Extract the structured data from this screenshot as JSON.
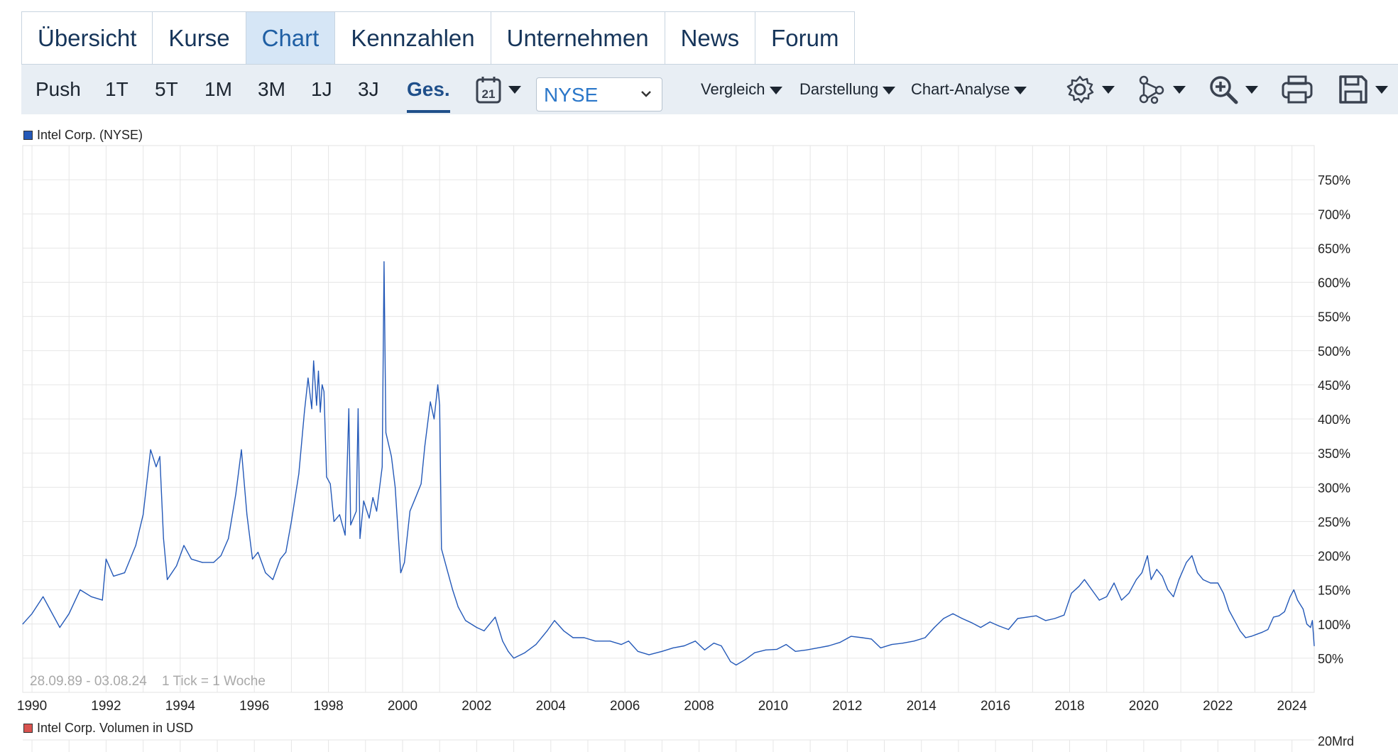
{
  "tabs": [
    {
      "label": "Übersicht",
      "active": false
    },
    {
      "label": "Kurse",
      "active": false
    },
    {
      "label": "Chart",
      "active": true
    },
    {
      "label": "Kennzahlen",
      "active": false
    },
    {
      "label": "Unternehmen",
      "active": false
    },
    {
      "label": "News",
      "active": false
    },
    {
      "label": "Forum",
      "active": false
    }
  ],
  "toolbar": {
    "ranges": [
      "Push",
      "1T",
      "5T",
      "1M",
      "3M",
      "1J",
      "3J",
      "Ges."
    ],
    "active_range": "Ges.",
    "calendar_day": "21",
    "exchange_select": "NYSE",
    "menus": {
      "compare": "Vergleich",
      "display": "Darstellung",
      "analysis": "Chart-Analyse"
    },
    "icons": [
      "gear-icon",
      "nodes-icon",
      "zoom-in-icon",
      "print-icon",
      "save-icon"
    ]
  },
  "colors": {
    "accent": "#1f5fa4",
    "line": "#2459b8",
    "toolbar_bg": "#e8eef4",
    "active_tab_bg": "#d6e6f6",
    "volume_legend": "#d9534f"
  },
  "chart_data": {
    "type": "line",
    "legend": "Intel Corp. (NYSE)",
    "x_tick_labels": [
      "1990",
      "1992",
      "1994",
      "1996",
      "1998",
      "2000",
      "2002",
      "2004",
      "2006",
      "2008",
      "2010",
      "2012",
      "2014",
      "2016",
      "2018",
      "2020",
      "2022",
      "2024"
    ],
    "y_tick_labels": [
      "50%",
      "100%",
      "150%",
      "200%",
      "250%",
      "300%",
      "350%",
      "400%",
      "450%",
      "500%",
      "550%",
      "600%",
      "650%",
      "700%",
      "750%"
    ],
    "xlim": [
      1989.75,
      2024.6
    ],
    "ylim": [
      0,
      800
    ],
    "date_range": "28.09.89 - 03.08.24",
    "tick_info": "1 Tick = 1 Woche",
    "grid": true,
    "series": [
      {
        "name": "Intel Corp. (NYSE)",
        "points": [
          [
            1989.75,
            100
          ],
          [
            1990.0,
            115
          ],
          [
            1990.3,
            140
          ],
          [
            1990.5,
            120
          ],
          [
            1990.75,
            95
          ],
          [
            1991.0,
            115
          ],
          [
            1991.3,
            150
          ],
          [
            1991.6,
            140
          ],
          [
            1991.9,
            135
          ],
          [
            1992.0,
            195
          ],
          [
            1992.2,
            170
          ],
          [
            1992.5,
            175
          ],
          [
            1992.8,
            215
          ],
          [
            1993.0,
            260
          ],
          [
            1993.2,
            355
          ],
          [
            1993.35,
            330
          ],
          [
            1993.45,
            345
          ],
          [
            1993.55,
            225
          ],
          [
            1993.65,
            165
          ],
          [
            1993.9,
            185
          ],
          [
            1994.1,
            215
          ],
          [
            1994.3,
            195
          ],
          [
            1994.6,
            190
          ],
          [
            1994.9,
            190
          ],
          [
            1995.1,
            200
          ],
          [
            1995.3,
            225
          ],
          [
            1995.5,
            290
          ],
          [
            1995.65,
            355
          ],
          [
            1995.8,
            260
          ],
          [
            1995.95,
            195
          ],
          [
            1996.1,
            205
          ],
          [
            1996.3,
            175
          ],
          [
            1996.5,
            165
          ],
          [
            1996.7,
            195
          ],
          [
            1996.85,
            205
          ],
          [
            1997.0,
            250
          ],
          [
            1997.2,
            320
          ],
          [
            1997.35,
            410
          ],
          [
            1997.45,
            460
          ],
          [
            1997.55,
            415
          ],
          [
            1997.6,
            485
          ],
          [
            1997.68,
            420
          ],
          [
            1997.73,
            470
          ],
          [
            1997.78,
            410
          ],
          [
            1997.83,
            450
          ],
          [
            1997.88,
            440
          ],
          [
            1997.95,
            315
          ],
          [
            1998.05,
            305
          ],
          [
            1998.15,
            250
          ],
          [
            1998.3,
            260
          ],
          [
            1998.45,
            230
          ],
          [
            1998.55,
            415
          ],
          [
            1998.6,
            245
          ],
          [
            1998.75,
            265
          ],
          [
            1998.8,
            415
          ],
          [
            1998.85,
            225
          ],
          [
            1998.95,
            280
          ],
          [
            1999.1,
            255
          ],
          [
            1999.2,
            285
          ],
          [
            1999.3,
            265
          ],
          [
            1999.45,
            330
          ],
          [
            1999.5,
            630
          ],
          [
            1999.55,
            380
          ],
          [
            1999.7,
            345
          ],
          [
            1999.8,
            300
          ],
          [
            1999.95,
            175
          ],
          [
            2000.05,
            190
          ],
          [
            2000.2,
            265
          ],
          [
            2000.35,
            285
          ],
          [
            2000.5,
            305
          ],
          [
            2000.6,
            360
          ],
          [
            2000.75,
            425
          ],
          [
            2000.85,
            400
          ],
          [
            2000.95,
            450
          ],
          [
            2001.0,
            420
          ],
          [
            2001.05,
            210
          ],
          [
            2001.2,
            180
          ],
          [
            2001.35,
            150
          ],
          [
            2001.5,
            125
          ],
          [
            2001.7,
            105
          ],
          [
            2002.0,
            95
          ],
          [
            2002.2,
            90
          ],
          [
            2002.5,
            110
          ],
          [
            2002.7,
            75
          ],
          [
            2002.85,
            60
          ],
          [
            2003.0,
            50
          ],
          [
            2003.3,
            58
          ],
          [
            2003.6,
            70
          ],
          [
            2003.9,
            90
          ],
          [
            2004.1,
            105
          ],
          [
            2004.35,
            90
          ],
          [
            2004.6,
            80
          ],
          [
            2004.9,
            80
          ],
          [
            2005.2,
            75
          ],
          [
            2005.6,
            75
          ],
          [
            2005.9,
            70
          ],
          [
            2006.1,
            75
          ],
          [
            2006.35,
            60
          ],
          [
            2006.65,
            55
          ],
          [
            2007.0,
            60
          ],
          [
            2007.3,
            65
          ],
          [
            2007.6,
            68
          ],
          [
            2007.9,
            75
          ],
          [
            2008.15,
            62
          ],
          [
            2008.4,
            72
          ],
          [
            2008.6,
            68
          ],
          [
            2008.85,
            45
          ],
          [
            2009.0,
            40
          ],
          [
            2009.25,
            48
          ],
          [
            2009.5,
            58
          ],
          [
            2009.8,
            62
          ],
          [
            2010.1,
            63
          ],
          [
            2010.35,
            70
          ],
          [
            2010.6,
            60
          ],
          [
            2010.9,
            62
          ],
          [
            2011.2,
            65
          ],
          [
            2011.5,
            68
          ],
          [
            2011.8,
            73
          ],
          [
            2012.1,
            82
          ],
          [
            2012.4,
            80
          ],
          [
            2012.65,
            78
          ],
          [
            2012.9,
            65
          ],
          [
            2013.2,
            70
          ],
          [
            2013.5,
            72
          ],
          [
            2013.8,
            75
          ],
          [
            2014.1,
            80
          ],
          [
            2014.35,
            95
          ],
          [
            2014.6,
            108
          ],
          [
            2014.85,
            115
          ],
          [
            2015.1,
            108
          ],
          [
            2015.35,
            102
          ],
          [
            2015.6,
            95
          ],
          [
            2015.85,
            103
          ],
          [
            2016.1,
            97
          ],
          [
            2016.35,
            92
          ],
          [
            2016.6,
            108
          ],
          [
            2016.85,
            110
          ],
          [
            2017.1,
            112
          ],
          [
            2017.35,
            105
          ],
          [
            2017.6,
            108
          ],
          [
            2017.85,
            113
          ],
          [
            2018.05,
            145
          ],
          [
            2018.25,
            155
          ],
          [
            2018.4,
            165
          ],
          [
            2018.6,
            150
          ],
          [
            2018.8,
            135
          ],
          [
            2019.0,
            140
          ],
          [
            2019.2,
            160
          ],
          [
            2019.4,
            135
          ],
          [
            2019.6,
            145
          ],
          [
            2019.8,
            165
          ],
          [
            2019.95,
            175
          ],
          [
            2020.1,
            200
          ],
          [
            2020.2,
            165
          ],
          [
            2020.35,
            180
          ],
          [
            2020.5,
            170
          ],
          [
            2020.65,
            150
          ],
          [
            2020.8,
            140
          ],
          [
            2020.95,
            165
          ],
          [
            2021.15,
            190
          ],
          [
            2021.3,
            200
          ],
          [
            2021.45,
            175
          ],
          [
            2021.6,
            165
          ],
          [
            2021.8,
            160
          ],
          [
            2022.0,
            160
          ],
          [
            2022.15,
            145
          ],
          [
            2022.3,
            120
          ],
          [
            2022.45,
            105
          ],
          [
            2022.6,
            90
          ],
          [
            2022.75,
            80
          ],
          [
            2022.9,
            82
          ],
          [
            2023.05,
            85
          ],
          [
            2023.2,
            88
          ],
          [
            2023.35,
            92
          ],
          [
            2023.5,
            110
          ],
          [
            2023.65,
            112
          ],
          [
            2023.8,
            118
          ],
          [
            2023.95,
            140
          ],
          [
            2024.05,
            150
          ],
          [
            2024.15,
            135
          ],
          [
            2024.3,
            122
          ],
          [
            2024.4,
            100
          ],
          [
            2024.5,
            95
          ],
          [
            2024.55,
            105
          ],
          [
            2024.6,
            68
          ]
        ]
      }
    ],
    "volume": {
      "legend": "Intel Corp. Volumen in USD",
      "y_tick_labels": [
        "20Mrd"
      ]
    }
  }
}
